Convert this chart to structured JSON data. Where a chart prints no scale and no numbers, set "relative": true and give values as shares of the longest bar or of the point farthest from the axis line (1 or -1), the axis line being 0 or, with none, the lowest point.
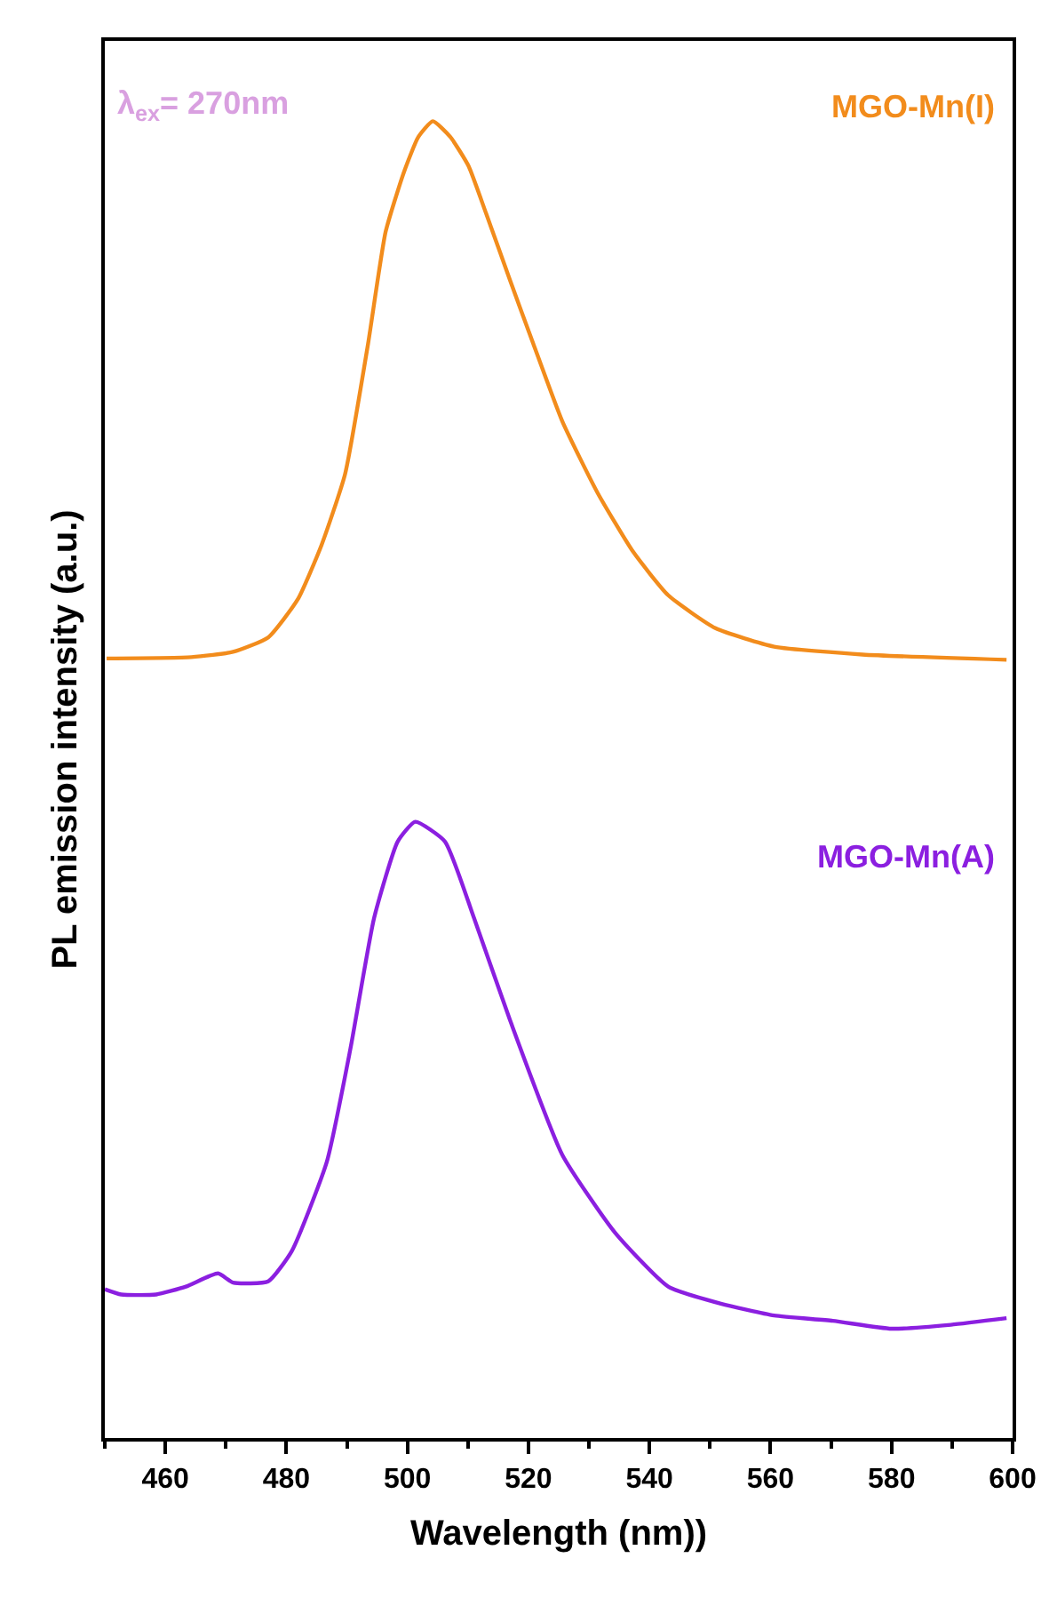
{
  "chart_data": {
    "type": "line",
    "relative": true,
    "xlabel": "Wavelength (nm))",
    "ylabel": "PL emission intensity (a.u.)",
    "xlim": [
      450,
      600
    ],
    "xticks": [
      {
        "value": 450,
        "label": null
      },
      460,
      {
        "value": 470,
        "label": null
      },
      480,
      {
        "value": 490,
        "label": null
      },
      500,
      {
        "value": 510,
        "label": null
      },
      520,
      {
        "value": 530,
        "label": null
      },
      540,
      {
        "value": 550,
        "label": null
      },
      560,
      {
        "value": 570,
        "label": null
      },
      580,
      {
        "value": 590,
        "label": null
      },
      600
    ],
    "tick_labels": "x",
    "legend": false,
    "marker": "none",
    "line_style": "solid",
    "annotations": [
      "λ$_{ex}$= 270nm"
    ],
    "series": [
      {
        "name": "MGO-Mn(I)",
        "color": "#f28c1c",
        "x": [
          450.3,
          464.3,
          471.2,
          477.0,
          481.9,
          485.8,
          489.7,
          493.5,
          496.4,
          499.4,
          501.8,
          504.2,
          507.1,
          510.1,
          513.0,
          516.9,
          520.8,
          525.6,
          531.4,
          537.3,
          543.1,
          550.9,
          560.6,
          575.2,
          599.0
        ],
        "values": [
          0.592,
          0.593,
          0.597,
          0.608,
          0.637,
          0.678,
          0.732,
          0.831,
          0.916,
          0.961,
          0.988,
          1.0,
          0.988,
          0.966,
          0.93,
          0.88,
          0.831,
          0.772,
          0.718,
          0.673,
          0.64,
          0.615,
          0.601,
          0.595,
          0.591
        ]
      },
      {
        "name": "MGO-Mn(A)",
        "color": "#8b1fe0",
        "x": [
          450.0,
          452.7,
          458.5,
          463.4,
          468.7,
          471.2,
          477.0,
          480.9,
          486.7,
          490.6,
          494.5,
          498.4,
          501.3,
          506.2,
          511.0,
          516.9,
          525.6,
          534.3,
          543.1,
          551.8,
          560.6,
          570.3,
          580.0,
          589.8,
          599.0
        ],
        "values": [
          0.113,
          0.109,
          0.109,
          0.115,
          0.125,
          0.118,
          0.119,
          0.142,
          0.21,
          0.296,
          0.395,
          0.453,
          0.468,
          0.453,
          0.395,
          0.318,
          0.215,
          0.156,
          0.115,
          0.102,
          0.093,
          0.089,
          0.083,
          0.086,
          0.091
        ]
      }
    ]
  }
}
